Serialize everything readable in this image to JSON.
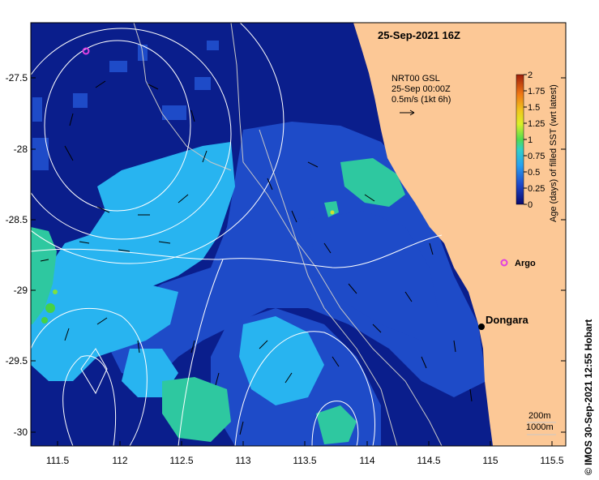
{
  "map": {
    "title": "25-Sep-2021 16Z",
    "x_ticks": [
      "111.5",
      "112",
      "112.5",
      "113",
      "113.5",
      "114",
      "114.5",
      "115",
      "115.5"
    ],
    "y_ticks": [
      "-27.5",
      "-28",
      "-28.5",
      "-29",
      "-29.5",
      "-30"
    ],
    "product_line1": "NRT00 GSL",
    "product_line2": "25-Sep 00:00Z",
    "vector_scale": "0.5m/s (1kt 6h)",
    "colorbar_label": "Age (days) of filled SST (wrt latest)",
    "colorbar_ticks": [
      "2",
      "1.75",
      "1.5",
      "1.25",
      "1",
      "0.75",
      "0.5",
      "0.25",
      "0"
    ],
    "place_dongara": "Dongara",
    "place_argo": "Argo",
    "contour_200": "200m",
    "contour_1000": "1000m",
    "copyright": "© IMOS 30-Sep-2021 12:55 Hobart",
    "colors": {
      "land": "#fcc896",
      "age_0": "#0a1e8c",
      "age_025": "#1e4bc8",
      "age_05": "#28b4f0",
      "age_075": "#2ec8a0",
      "age_1": "#46d246",
      "argo": "#e040e0"
    }
  }
}
